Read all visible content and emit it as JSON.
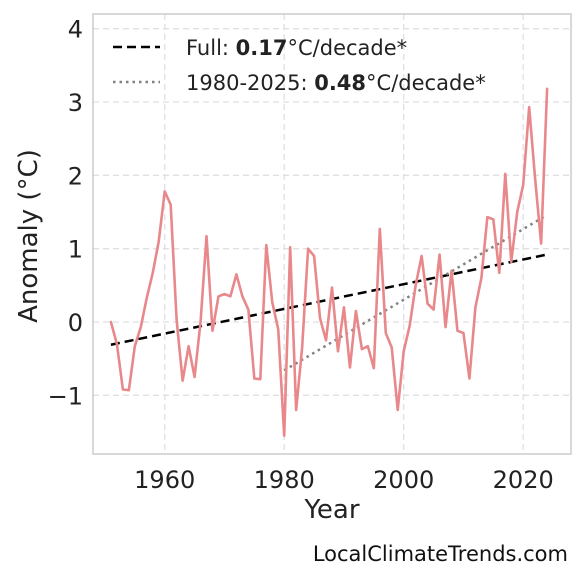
{
  "chart_data": {
    "type": "line",
    "xlabel": "Year",
    "ylabel": "Anomaly (°C)",
    "xlim": [
      1948,
      2028
    ],
    "ylim": [
      -1.8,
      4.2
    ],
    "xticks": [
      1960,
      1980,
      2000,
      2020
    ],
    "yticks": [
      -1,
      0,
      1,
      2,
      3,
      4
    ],
    "ytick_labels": [
      "−1",
      "0",
      "1",
      "2",
      "3",
      "4"
    ],
    "grid": true,
    "legend_position": "top-left",
    "colors": {
      "anomaly_series": "#e8888b",
      "full_trend": "#000000",
      "recent_trend": "#808080",
      "grid": "#e0e0e0",
      "frame": "#cccccc"
    },
    "series": [
      {
        "x": [
          1951,
          1952,
          1953,
          1954,
          1955,
          1956,
          1957,
          1958,
          1959,
          1960,
          1961,
          1962,
          1963,
          1964,
          1965,
          1966,
          1967,
          1968,
          1969,
          1970,
          1971,
          1972,
          1973,
          1974,
          1975,
          1976,
          1977,
          1978,
          1979,
          1980,
          1981,
          1982,
          1983,
          1984,
          1985,
          1986,
          1987,
          1988,
          1989,
          1990,
          1991,
          1992,
          1993,
          1994,
          1995,
          1996,
          1997,
          1998,
          1999,
          2000,
          2001,
          2002,
          2003,
          2004,
          2005,
          2006,
          2007,
          2008,
          2009,
          2010,
          2011,
          2012,
          2013,
          2014,
          2015,
          2016,
          2017,
          2018,
          2019,
          2020,
          2021,
          2022,
          2023,
          2024
        ],
        "y": [
          0.0,
          -0.3,
          -0.92,
          -0.93,
          -0.33,
          -0.07,
          0.33,
          0.67,
          1.1,
          1.78,
          1.6,
          0.02,
          -0.8,
          -0.33,
          -0.75,
          0.0,
          1.17,
          -0.12,
          0.35,
          0.38,
          0.35,
          0.65,
          0.35,
          0.17,
          -0.77,
          -0.78,
          1.05,
          0.27,
          -0.1,
          -1.55,
          1.02,
          -1.2,
          -0.35,
          1.0,
          0.9,
          0.05,
          -0.25,
          0.47,
          -0.4,
          0.2,
          -0.62,
          0.15,
          -0.37,
          -0.33,
          -0.63,
          1.27,
          -0.15,
          -0.35,
          -1.2,
          -0.4,
          -0.05,
          0.5,
          0.9,
          0.25,
          0.17,
          0.92,
          -0.07,
          0.7,
          -0.12,
          -0.15,
          -0.77,
          0.2,
          0.6,
          1.43,
          1.4,
          0.67,
          2.02,
          0.82,
          1.5,
          1.87,
          2.93,
          1.95,
          1.07,
          3.18
        ]
      }
    ],
    "trends": [
      {
        "key": "full",
        "x": [
          1951,
          2024
        ],
        "y": [
          -0.31,
          0.92
        ],
        "legend_label": "Full: ",
        "legend_value": "0.17",
        "legend_unit": "°C/decade*",
        "style": "dashed"
      },
      {
        "key": "recent",
        "x": [
          1980,
          2024
        ],
        "y": [
          -0.66,
          1.46
        ],
        "legend_label": "1980-2025: ",
        "legend_value": "0.48",
        "legend_unit": "°C/decade*",
        "style": "dotted"
      }
    ]
  },
  "watermark": "LocalClimateTrends.com"
}
